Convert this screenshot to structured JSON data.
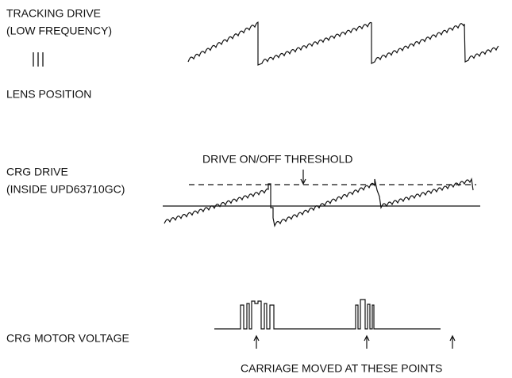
{
  "tracking_drive": {
    "title": "TRACKING DRIVE",
    "subtitle": "(LOW FREQUENCY)"
  },
  "lens_position": {
    "title": "LENS POSITION"
  },
  "crg_drive": {
    "title": "CRG DRIVE",
    "subtitle": "(INSIDE UPD63710GC)",
    "threshold": "DRIVE ON/OFF THRESHOLD"
  },
  "crg_motor_voltage": {
    "title": "CRG MOTOR VOLTAGE",
    "note": "CARRIAGE MOVED AT THESE POINTS"
  }
}
